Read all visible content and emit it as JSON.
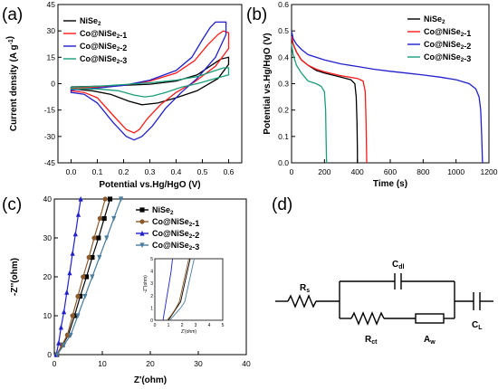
{
  "figure": {
    "panel_labels": [
      "(a)",
      "(b)",
      "(c)",
      "(d)"
    ],
    "circuit": {
      "Rs": {
        "main": "R",
        "sub": "s"
      },
      "Cdl": {
        "main": "C",
        "sub": "dl"
      },
      "Rct": {
        "main": "R",
        "sub": "ct"
      },
      "Aw": {
        "main": "A",
        "sub": "w"
      },
      "CL": {
        "main": "C",
        "sub": "L"
      }
    },
    "colors": {
      "NiSe2": "#000000",
      "Co@NiSe2-1": "#ff1a1a",
      "Co@NiSe2-2": "#2020cc",
      "Co@NiSe2-3": "#1a9e7a"
    }
  },
  "chart_data": [
    {
      "panel": "(a)",
      "type": "line",
      "xlabel": "Potential vs.Hg/HgO (V)",
      "ylabel": "Current density (A g⁻¹)",
      "xlim": [
        -0.05,
        0.65
      ],
      "ylim": [
        -45,
        45
      ],
      "xticks": [
        "0.0",
        "0.1",
        "0.2",
        "0.3",
        "0.4",
        "0.5",
        "0.6"
      ],
      "yticks": [
        "-45",
        "-30",
        "-15",
        "0",
        "15",
        "30",
        "45"
      ],
      "legend": "top-left",
      "series": [
        {
          "name": "NiSe₂",
          "color": "#000000",
          "points": [
            [
              0.0,
              -1.8
            ],
            [
              0.15,
              -1.3
            ],
            [
              0.3,
              -0.3
            ],
            [
              0.4,
              1.5
            ],
            [
              0.48,
              5
            ],
            [
              0.53,
              10
            ],
            [
              0.57,
              14
            ],
            [
              0.6,
              15
            ],
            [
              0.6,
              11
            ],
            [
              0.56,
              3
            ],
            [
              0.48,
              -4
            ],
            [
              0.4,
              -8
            ],
            [
              0.33,
              -11
            ],
            [
              0.27,
              -12
            ],
            [
              0.22,
              -10
            ],
            [
              0.15,
              -6
            ],
            [
              0.08,
              -4
            ],
            [
              0.0,
              -3
            ]
          ]
        },
        {
          "name": "Co@NiSe₂-1",
          "color": "#ff1a1a",
          "points": [
            [
              0.0,
              -2.5
            ],
            [
              0.1,
              -2
            ],
            [
              0.2,
              -1
            ],
            [
              0.3,
              1.5
            ],
            [
              0.4,
              6
            ],
            [
              0.47,
              13
            ],
            [
              0.52,
              22
            ],
            [
              0.56,
              28
            ],
            [
              0.58,
              30
            ],
            [
              0.6,
              29
            ],
            [
              0.6,
              20
            ],
            [
              0.55,
              10
            ],
            [
              0.47,
              1
            ],
            [
              0.4,
              -5
            ],
            [
              0.34,
              -12
            ],
            [
              0.29,
              -20
            ],
            [
              0.26,
              -26
            ],
            [
              0.24,
              -28
            ],
            [
              0.21,
              -26
            ],
            [
              0.16,
              -18
            ],
            [
              0.1,
              -8
            ],
            [
              0.05,
              -5
            ],
            [
              0.0,
              -4
            ]
          ]
        },
        {
          "name": "Co@NiSe₂-2",
          "color": "#2020cc",
          "points": [
            [
              0.0,
              -3.5
            ],
            [
              0.1,
              -2.5
            ],
            [
              0.2,
              -1
            ],
            [
              0.3,
              2
            ],
            [
              0.4,
              7.5
            ],
            [
              0.46,
              15
            ],
            [
              0.5,
              25
            ],
            [
              0.53,
              32
            ],
            [
              0.55,
              35
            ],
            [
              0.58,
              35
            ],
            [
              0.59,
              35
            ],
            [
              0.59,
              28
            ],
            [
              0.55,
              15
            ],
            [
              0.48,
              3
            ],
            [
              0.42,
              -5
            ],
            [
              0.36,
              -14
            ],
            [
              0.31,
              -24
            ],
            [
              0.27,
              -30
            ],
            [
              0.24,
              -32
            ],
            [
              0.21,
              -30
            ],
            [
              0.16,
              -22
            ],
            [
              0.1,
              -11
            ],
            [
              0.05,
              -6
            ],
            [
              0.0,
              -5
            ]
          ]
        },
        {
          "name": "Co@NiSe₂-3",
          "color": "#1a9e7a",
          "points": [
            [
              0.0,
              -2
            ],
            [
              0.1,
              -1.5
            ],
            [
              0.2,
              -0.5
            ],
            [
              0.3,
              0.5
            ],
            [
              0.4,
              2
            ],
            [
              0.48,
              4
            ],
            [
              0.54,
              7
            ],
            [
              0.58,
              9
            ],
            [
              0.6,
              9
            ],
            [
              0.6,
              5
            ],
            [
              0.55,
              3
            ],
            [
              0.48,
              0
            ],
            [
              0.42,
              -2
            ],
            [
              0.36,
              -5
            ],
            [
              0.31,
              -7
            ],
            [
              0.28,
              -7.5
            ],
            [
              0.24,
              -6.5
            ],
            [
              0.18,
              -4
            ],
            [
              0.1,
              -3
            ],
            [
              0.0,
              -3
            ]
          ]
        }
      ]
    },
    {
      "panel": "(b)",
      "type": "line",
      "xlabel": "Time (s)",
      "ylabel": "Potential vs.Hg/HgO (V)",
      "xlim": [
        0,
        1200
      ],
      "ylim": [
        0.0,
        0.6
      ],
      "xticks": [
        "0",
        "200",
        "400",
        "600",
        "800",
        "1000",
        "1200"
      ],
      "yticks": [
        "0.0",
        "0.1",
        "0.2",
        "0.3",
        "0.4",
        "0.5",
        "0.6"
      ],
      "legend": "top-right",
      "series": [
        {
          "name": "NiSe₂",
          "color": "#000000",
          "points": [
            [
              0,
              0.48
            ],
            [
              10,
              0.45
            ],
            [
              30,
              0.42
            ],
            [
              60,
              0.39
            ],
            [
              100,
              0.37
            ],
            [
              150,
              0.35
            ],
            [
              200,
              0.34
            ],
            [
              300,
              0.325
            ],
            [
              360,
              0.315
            ],
            [
              385,
              0.3
            ],
            [
              393,
              0.25
            ],
            [
              398,
              0.15
            ],
            [
              400,
              0.05
            ],
            [
              401,
              0.0
            ]
          ]
        },
        {
          "name": "Co@NiSe₂-1",
          "color": "#ff1a1a",
          "points": [
            [
              0,
              0.48
            ],
            [
              10,
              0.45
            ],
            [
              30,
              0.42
            ],
            [
              60,
              0.39
            ],
            [
              100,
              0.37
            ],
            [
              150,
              0.355
            ],
            [
              200,
              0.345
            ],
            [
              300,
              0.33
            ],
            [
              400,
              0.32
            ],
            [
              435,
              0.31
            ],
            [
              448,
              0.27
            ],
            [
              453,
              0.15
            ],
            [
              456,
              0.05
            ],
            [
              457,
              0.0
            ]
          ]
        },
        {
          "name": "Co@NiSe₂-2",
          "color": "#2020cc",
          "points": [
            [
              0,
              0.5
            ],
            [
              10,
              0.47
            ],
            [
              30,
              0.45
            ],
            [
              60,
              0.43
            ],
            [
              100,
              0.41
            ],
            [
              200,
              0.39
            ],
            [
              300,
              0.375
            ],
            [
              400,
              0.365
            ],
            [
              500,
              0.355
            ],
            [
              600,
              0.347
            ],
            [
              700,
              0.34
            ],
            [
              800,
              0.333
            ],
            [
              900,
              0.325
            ],
            [
              1000,
              0.315
            ],
            [
              1080,
              0.3
            ],
            [
              1120,
              0.28
            ],
            [
              1140,
              0.25
            ],
            [
              1150,
              0.2
            ],
            [
              1156,
              0.1
            ],
            [
              1160,
              0.02
            ],
            [
              1161,
              0.0
            ]
          ]
        },
        {
          "name": "Co@NiSe₂-3",
          "color": "#1a9e7a",
          "points": [
            [
              0,
              0.45
            ],
            [
              10,
              0.41
            ],
            [
              30,
              0.37
            ],
            [
              60,
              0.34
            ],
            [
              100,
              0.31
            ],
            [
              150,
              0.3
            ],
            [
              180,
              0.29
            ],
            [
              200,
              0.27
            ],
            [
              207,
              0.2
            ],
            [
              210,
              0.1
            ],
            [
              212,
              0.03
            ],
            [
              213,
              0.0
            ]
          ]
        }
      ]
    },
    {
      "panel": "(c)",
      "type": "scatter",
      "xlabel": "Z'(ohm)",
      "ylabel": "-Z''(ohm)",
      "xlim": [
        0,
        40
      ],
      "ylim": [
        0,
        40
      ],
      "xticks": [
        "0",
        "10",
        "20",
        "30",
        "40"
      ],
      "yticks": [
        "0",
        "10",
        "20",
        "30",
        "40"
      ],
      "legend": "top-right",
      "series": [
        {
          "name": "NiSe₂",
          "color": "#000000",
          "marker": "square",
          "points": [
            [
              0.5,
              0
            ],
            [
              1.7,
              2.5
            ],
            [
              2.9,
              5
            ],
            [
              4.2,
              10
            ],
            [
              5.4,
              15
            ],
            [
              6.7,
              20
            ],
            [
              7.9,
              25
            ],
            [
              9.2,
              30
            ],
            [
              10.4,
              35
            ],
            [
              11.6,
              40
            ]
          ]
        },
        {
          "name": "Co@NiSe₂-1",
          "color": "#8b5a2b",
          "marker": "circle",
          "points": [
            [
              0.5,
              0
            ],
            [
              1.6,
              2.5
            ],
            [
              2.7,
              5
            ],
            [
              3.8,
              10
            ],
            [
              4.9,
              15
            ],
            [
              6.0,
              20
            ],
            [
              7.2,
              25
            ],
            [
              8.3,
              30
            ],
            [
              9.5,
              35
            ],
            [
              10.6,
              40
            ]
          ]
        },
        {
          "name": "Co@NiSe₂-2",
          "color": "#2020cc",
          "marker": "triangle-up",
          "points": [
            [
              0.4,
              0
            ],
            [
              0.9,
              3
            ],
            [
              1.4,
              7
            ],
            [
              2.0,
              11
            ],
            [
              2.6,
              16
            ],
            [
              3.2,
              21
            ],
            [
              3.8,
              26
            ],
            [
              4.4,
              31
            ],
            [
              5.0,
              36
            ],
            [
              5.5,
              40
            ]
          ]
        },
        {
          "name": "Co@NiSe₂-3",
          "color": "#4a7c9e",
          "marker": "triangle-down",
          "points": [
            [
              0.6,
              0
            ],
            [
              2.0,
              2.5
            ],
            [
              3.4,
              5
            ],
            [
              4.9,
              10
            ],
            [
              6.4,
              15
            ],
            [
              7.9,
              20
            ],
            [
              9.4,
              25
            ],
            [
              10.9,
              30
            ],
            [
              12.4,
              35
            ],
            [
              13.9,
              40
            ]
          ]
        }
      ],
      "inset": {
        "xlabel": "Z'(ohm)",
        "ylabel": "-Z''(ohm)",
        "xlim": [
          0,
          5
        ],
        "ylim": [
          0,
          5
        ],
        "xticks": [
          "0",
          "1",
          "2",
          "3",
          "4",
          "5"
        ],
        "yticks": [
          "0",
          "1",
          "2",
          "3",
          "4",
          "5"
        ],
        "series": [
          {
            "name": "NiSe₂",
            "color": "#000000",
            "points": [
              [
                1.0,
                0
              ],
              [
                1.3,
                0.5
              ],
              [
                1.6,
                1.0
              ],
              [
                1.9,
                1.5
              ],
              [
                2.1,
                2.5
              ],
              [
                2.3,
                3.5
              ],
              [
                2.5,
                4.5
              ],
              [
                2.6,
                5
              ]
            ]
          },
          {
            "name": "Co@NiSe₂-1",
            "color": "#8b5a2b",
            "points": [
              [
                0.9,
                0
              ],
              [
                1.2,
                0.4
              ],
              [
                1.5,
                0.9
              ],
              [
                1.8,
                1.5
              ],
              [
                2.0,
                2.5
              ],
              [
                2.2,
                3.5
              ],
              [
                2.4,
                4.5
              ],
              [
                2.5,
                5
              ]
            ]
          },
          {
            "name": "Co@NiSe₂-2",
            "color": "#2020cc",
            "points": [
              [
                0.6,
                0
              ],
              [
                0.75,
                1
              ],
              [
                0.9,
                2
              ],
              [
                1.05,
                3
              ],
              [
                1.2,
                4
              ],
              [
                1.3,
                5
              ]
            ]
          },
          {
            "name": "Co@NiSe₂-3",
            "color": "#4a7c9e",
            "points": [
              [
                1.1,
                0
              ],
              [
                1.5,
                0.5
              ],
              [
                1.9,
                1.0
              ],
              [
                2.2,
                1.5
              ],
              [
                2.4,
                2.5
              ],
              [
                2.6,
                3.5
              ],
              [
                2.8,
                4.5
              ],
              [
                2.9,
                5
              ]
            ]
          }
        ]
      }
    }
  ]
}
